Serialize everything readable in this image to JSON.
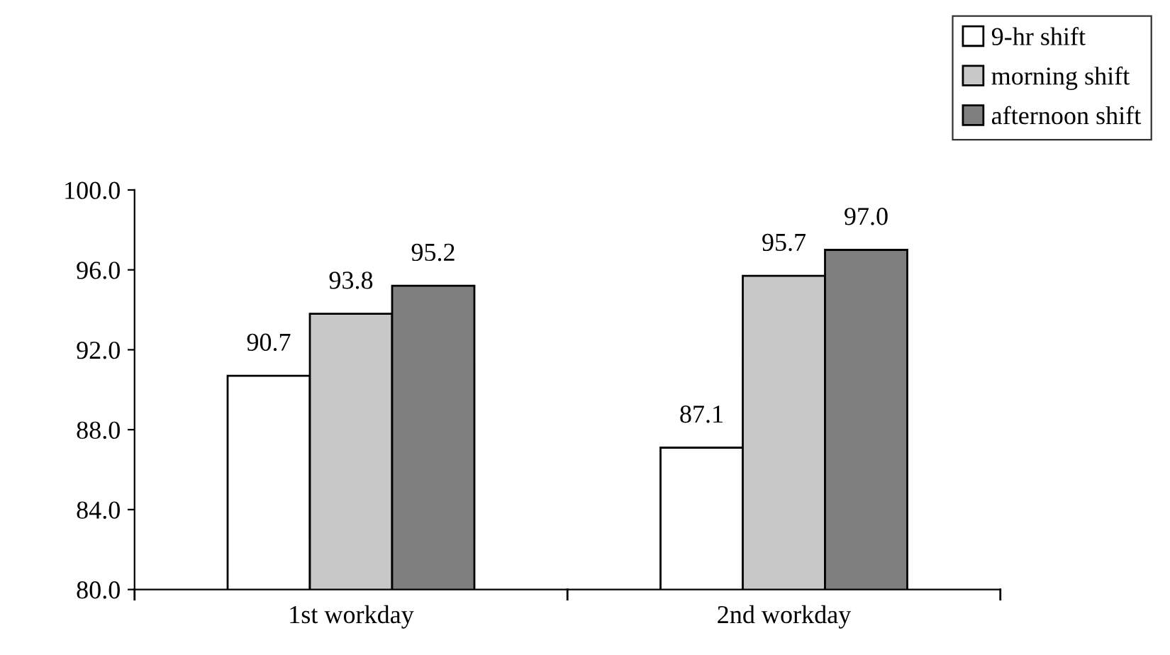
{
  "chart_data": {
    "type": "bar",
    "categories": [
      "1st workday",
      "2nd workday"
    ],
    "series": [
      {
        "name": "9-hr shift",
        "color": "#ffffff",
        "values": [
          90.7,
          87.1
        ],
        "value_labels": [
          "90.7",
          "87.1"
        ]
      },
      {
        "name": "morning shift",
        "color": "#c8c8c8",
        "values": [
          93.8,
          95.7
        ],
        "value_labels": [
          "93.8",
          "95.7"
        ]
      },
      {
        "name": "afternoon shift",
        "color": "#7f7f7f",
        "values": [
          95.2,
          97.0
        ],
        "value_labels": [
          "95.2",
          "97.0"
        ]
      }
    ],
    "ylim": [
      80,
      100
    ],
    "yticks": [
      {
        "value": 80,
        "label": "80.0"
      },
      {
        "value": 84,
        "label": "84.0"
      },
      {
        "value": 88,
        "label": "88.0"
      },
      {
        "value": 92,
        "label": "92.0"
      },
      {
        "value": 96,
        "label": "96.0"
      },
      {
        "value": 100,
        "label": "100.0"
      }
    ],
    "grid": false,
    "legend": "top right"
  }
}
